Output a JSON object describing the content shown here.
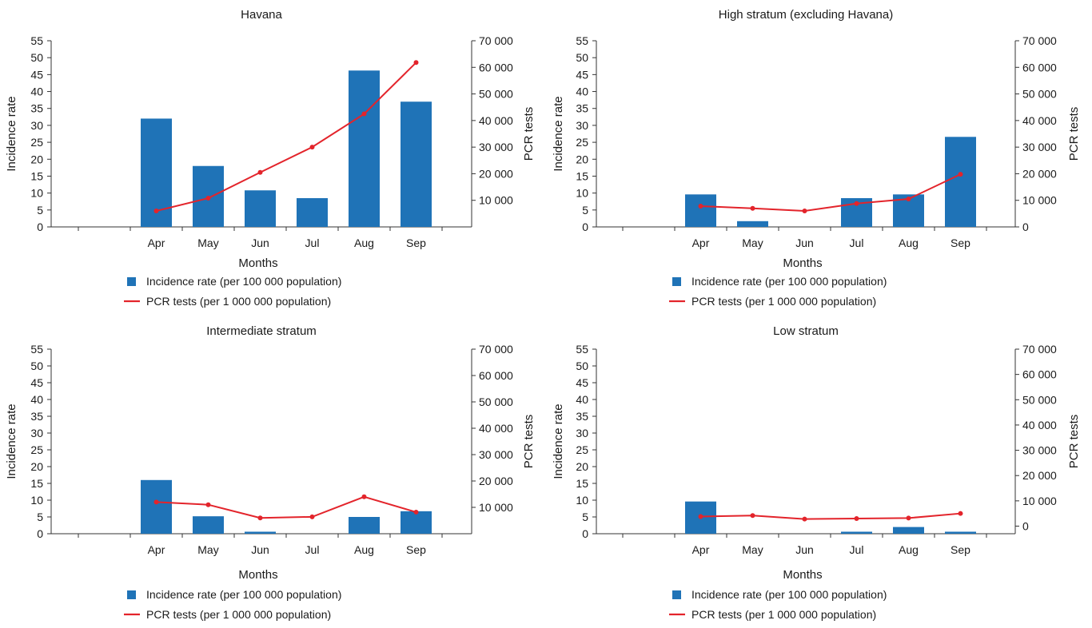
{
  "colors": {
    "bar": "#1f73b7",
    "line": "#e3242b",
    "axis": "#333333",
    "text": "#1a1a1a"
  },
  "chart_data": [
    {
      "type": "bar",
      "title": "Havana",
      "xlabel": "Months",
      "ylabel": "Incidence rate",
      "y2label": "PCR tests",
      "categories": [
        "Apr",
        "May",
        "Jun",
        "Jul",
        "Aug",
        "Sep"
      ],
      "ylim": [
        0,
        55
      ],
      "yticks": [
        0,
        5,
        10,
        15,
        20,
        25,
        30,
        35,
        40,
        45,
        50,
        55
      ],
      "y2lim": [
        0,
        70000
      ],
      "y2ticks": [
        "10 000",
        "20 000",
        "30 000",
        "40 000",
        "50 000",
        "60 000",
        "70 000"
      ],
      "series": [
        {
          "name": "Incidence rate (per 100 000 population)",
          "type": "bar",
          "axis": "left",
          "values": [
            32,
            18,
            10.8,
            8.5,
            46.2,
            37
          ]
        },
        {
          "name": "PCR tests (per 1 000 000 population)",
          "type": "line",
          "axis": "right",
          "values": [
            6000,
            10800,
            20500,
            30000,
            42500,
            61800
          ]
        }
      ],
      "legend": "bottom"
    },
    {
      "type": "bar",
      "title": "High stratum (excluding Havana)",
      "xlabel": "Months",
      "ylabel": "Incidence rate",
      "y2label": "PCR tests",
      "categories": [
        "Apr",
        "May",
        "Jun",
        "Jul",
        "Aug",
        "Sep"
      ],
      "ylim": [
        0,
        55
      ],
      "yticks": [
        0,
        5,
        10,
        15,
        20,
        25,
        30,
        35,
        40,
        45,
        50,
        55
      ],
      "y2lim": [
        0,
        70000
      ],
      "y2ticks": [
        "0",
        "10 000",
        "20 000",
        "30 000",
        "40 000",
        "50 000",
        "60 000",
        "70 000"
      ],
      "series": [
        {
          "name": "Incidence rate (per 100 000 population)",
          "type": "bar",
          "axis": "left",
          "values": [
            9.6,
            1.7,
            0,
            8.5,
            9.6,
            26.6
          ]
        },
        {
          "name": "PCR tests (per 1 000 000 population)",
          "type": "line",
          "axis": "right",
          "values": [
            7800,
            7000,
            6000,
            8800,
            10500,
            19800
          ]
        }
      ],
      "legend": "bottom"
    },
    {
      "type": "bar",
      "title": "Intermediate stratum",
      "xlabel": "Months",
      "ylabel": "Incidence rate",
      "y2label": "PCR tests",
      "categories": [
        "Apr",
        "May",
        "Jun",
        "Jul",
        "Aug",
        "Sep"
      ],
      "ylim": [
        0,
        55
      ],
      "yticks": [
        0,
        5,
        10,
        15,
        20,
        25,
        30,
        35,
        40,
        45,
        50,
        55
      ],
      "y2lim": [
        0,
        70000
      ],
      "y2ticks": [
        "10 000",
        "20 000",
        "30 000",
        "40 000",
        "50 000",
        "60 000",
        "70 000"
      ],
      "series": [
        {
          "name": "Incidence rate (per 100 000 population)",
          "type": "bar",
          "axis": "left",
          "values": [
            16,
            5.2,
            0.6,
            0,
            5,
            6.7
          ]
        },
        {
          "name": "PCR tests (per 1 000 000 population)",
          "type": "line",
          "axis": "right",
          "values": [
            12000,
            11000,
            6000,
            6400,
            14000,
            8200
          ]
        }
      ],
      "legend": "bottom"
    },
    {
      "type": "bar",
      "title": "Low stratum",
      "xlabel": "Months",
      "ylabel": "Incidence rate",
      "y2label": "PCR tests",
      "categories": [
        "Apr",
        "May",
        "Jun",
        "Jul",
        "Aug",
        "Sep"
      ],
      "ylim": [
        0,
        55
      ],
      "yticks": [
        0,
        5,
        10,
        15,
        20,
        25,
        30,
        35,
        40,
        45,
        50,
        55
      ],
      "y2lim": [
        -3000,
        70000
      ],
      "y2ticks": [
        "0",
        "10 000",
        "20 000",
        "30 000",
        "40 000",
        "50 000",
        "60 000",
        "70 000"
      ],
      "series": [
        {
          "name": "Incidence rate (per 100 000 population)",
          "type": "bar",
          "axis": "left",
          "values": [
            9.6,
            0,
            0,
            0.6,
            2,
            0.6
          ]
        },
        {
          "name": "PCR tests (per 1 000 000 population)",
          "type": "line",
          "axis": "right",
          "values": [
            3800,
            4200,
            2800,
            3000,
            3200,
            5000
          ]
        }
      ],
      "legend": "bottom"
    }
  ]
}
